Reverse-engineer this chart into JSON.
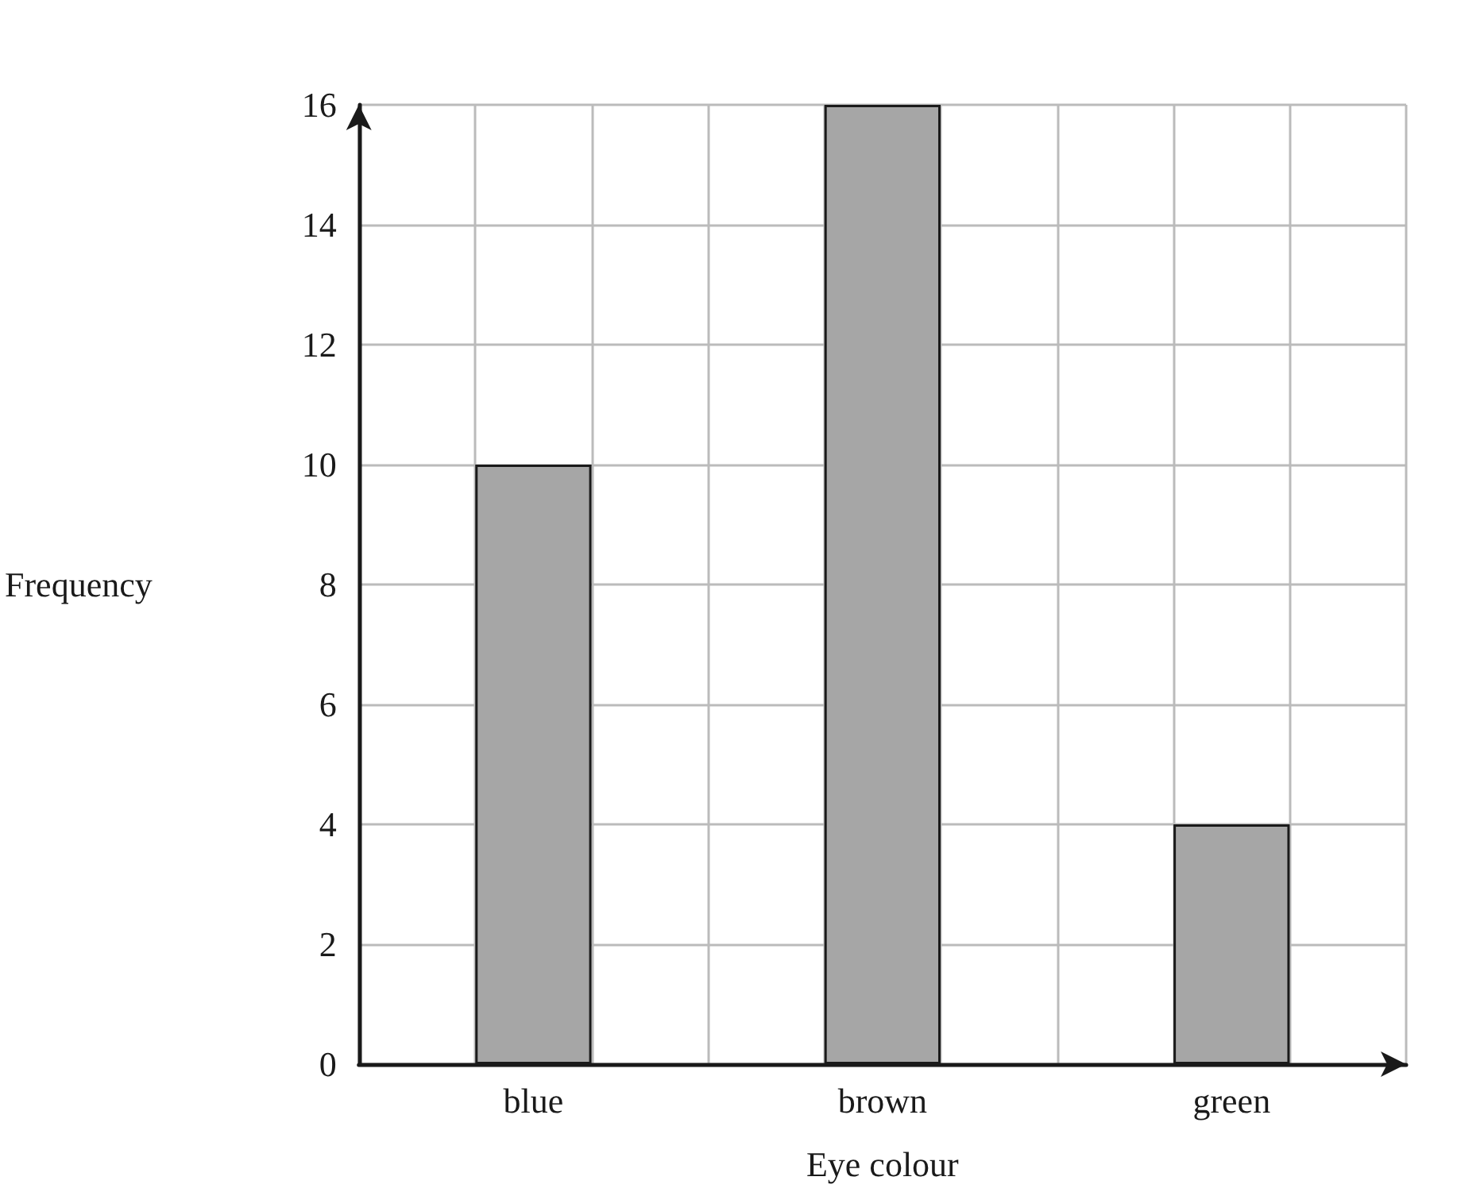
{
  "chart_data": {
    "type": "bar",
    "xlabel": "Eye colour",
    "ylabel": "Frequency",
    "categories": [
      "blue",
      "brown",
      "green"
    ],
    "values": [
      10,
      16,
      4
    ],
    "color": "#a6a6a6",
    "ylim": [
      0,
      16
    ],
    "yticks": [
      0,
      2,
      4,
      6,
      8,
      10,
      12,
      14,
      16
    ],
    "grid": true
  }
}
